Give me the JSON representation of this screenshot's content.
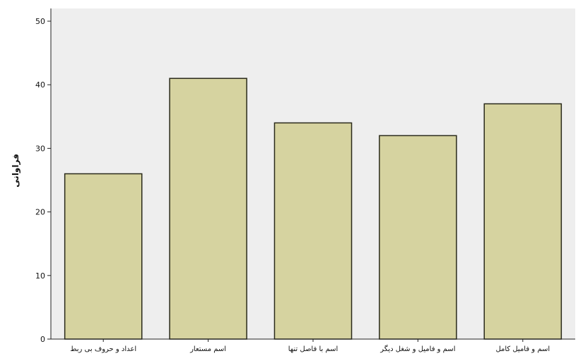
{
  "chart_data": {
    "type": "bar",
    "title": "",
    "xlabel": "",
    "ylabel": "فراوانی",
    "categories": [
      "اعداد و حروف بی ربط",
      "اسم مستعار",
      "اسم با فاصل تنها",
      "اسم و فامیل و شغل دیگر",
      "اسم و فامیل کامل"
    ],
    "values": [
      26,
      41,
      34,
      32,
      37
    ],
    "ylim": [
      0,
      52
    ],
    "yticks": [
      0,
      10,
      20,
      30,
      40,
      50
    ],
    "grid": false,
    "bar_color": "#d6d3a0",
    "bar_edge_color": "#2a2a1a",
    "plot_background": "#eeeeee"
  }
}
